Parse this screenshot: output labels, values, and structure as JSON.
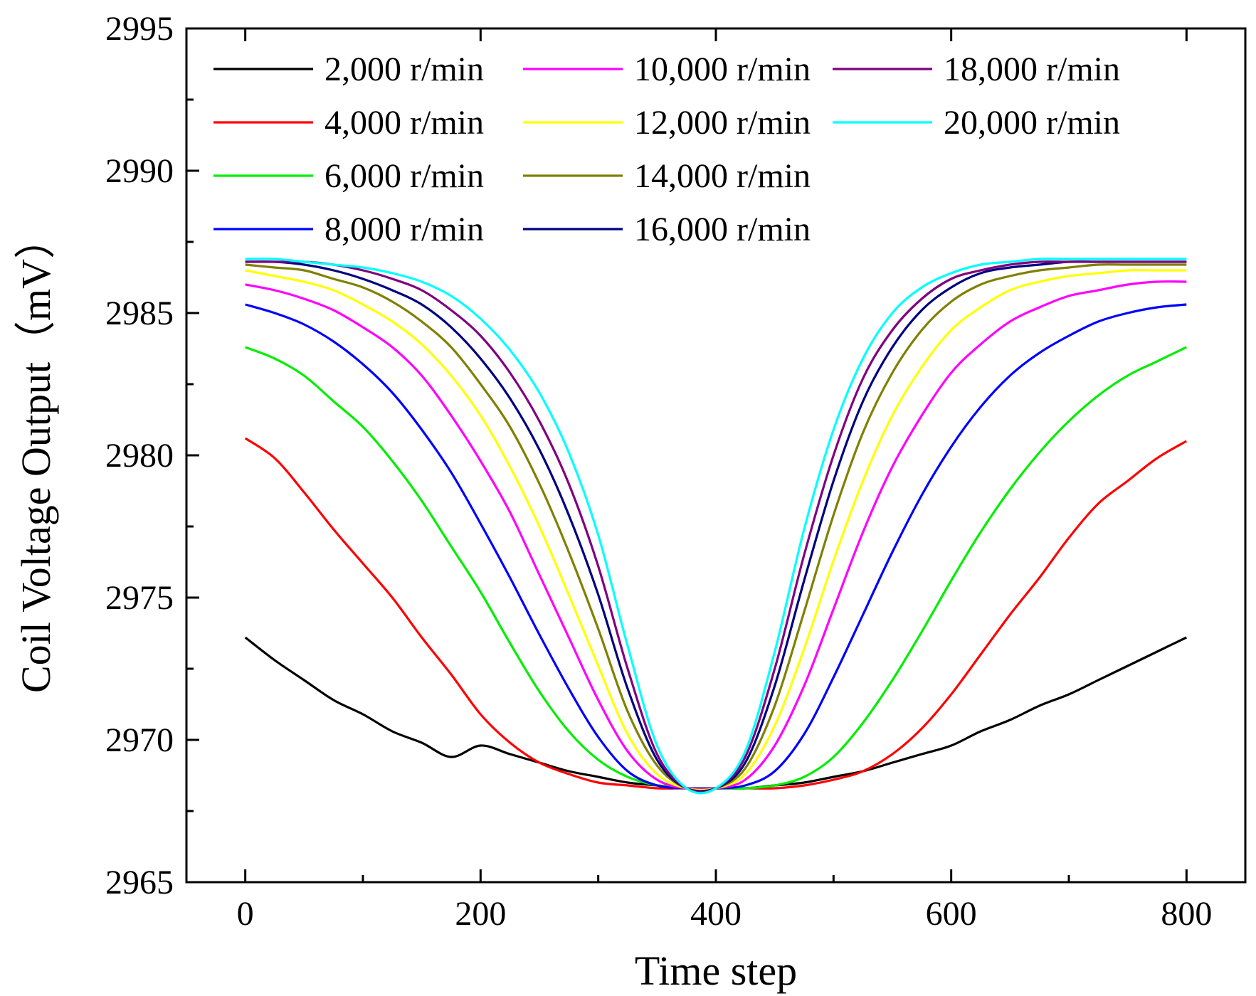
{
  "chart_data": {
    "type": "line",
    "title": "",
    "xlabel": "Time step",
    "ylabel": "Coil Voltage Output（mV）",
    "xlim": [
      -50,
      850
    ],
    "ylim": [
      2965,
      2995
    ],
    "x_ticks": [
      "0",
      "200",
      "400",
      "600",
      "800"
    ],
    "y_ticks": [
      "2965",
      "2970",
      "2975",
      "2980",
      "2985",
      "2990",
      "2995"
    ],
    "grid": false,
    "legend_position": "top",
    "minimum": 2968.3,
    "x": [
      0,
      25,
      50,
      75,
      100,
      125,
      150,
      175,
      200,
      225,
      250,
      275,
      300,
      325,
      350,
      375,
      400,
      425,
      450,
      475,
      500,
      525,
      550,
      575,
      600,
      625,
      650,
      675,
      700,
      725,
      750,
      775,
      800
    ],
    "series": [
      {
        "name": "2,000 r/min",
        "color": "#000000",
        "values": [
          2973.6,
          2972.8,
          2972.1,
          2971.4,
          2970.9,
          2970.3,
          2969.9,
          2969.4,
          2969.8,
          2969.5,
          2969.2,
          2968.9,
          2968.7,
          2968.5,
          2968.4,
          2968.3,
          2968.3,
          2968.3,
          2968.4,
          2968.5,
          2968.7,
          2968.9,
          2969.2,
          2969.5,
          2969.8,
          2970.3,
          2970.7,
          2971.2,
          2971.6,
          2972.1,
          2972.6,
          2973.1,
          2973.6
        ]
      },
      {
        "name": "4,000 r/min",
        "color": "#ff0000",
        "values": [
          2980.6,
          2979.9,
          2978.7,
          2977.4,
          2976.2,
          2975.0,
          2973.6,
          2972.3,
          2970.9,
          2969.9,
          2969.2,
          2968.8,
          2968.5,
          2968.4,
          2968.3,
          2968.3,
          2968.3,
          2968.3,
          2968.3,
          2968.4,
          2968.6,
          2968.9,
          2969.5,
          2970.4,
          2971.6,
          2973.0,
          2974.4,
          2975.7,
          2977.1,
          2978.3,
          2979.1,
          2979.9,
          2980.5
        ]
      },
      {
        "name": "6,000 r/min",
        "color": "#00ee00",
        "values": [
          2983.8,
          2983.4,
          2982.8,
          2981.9,
          2981.0,
          2979.8,
          2978.4,
          2976.8,
          2975.2,
          2973.4,
          2971.7,
          2970.3,
          2969.3,
          2968.7,
          2968.4,
          2968.3,
          2968.3,
          2968.3,
          2968.4,
          2968.7,
          2969.4,
          2970.6,
          2972.1,
          2973.8,
          2975.6,
          2977.3,
          2978.8,
          2980.1,
          2981.2,
          2982.1,
          2982.8,
          2983.3,
          2983.8
        ]
      },
      {
        "name": "8,000 r/min",
        "color": "#0000ff",
        "values": [
          2985.3,
          2985.0,
          2984.6,
          2984.0,
          2983.2,
          2982.2,
          2980.9,
          2979.4,
          2977.6,
          2975.7,
          2973.7,
          2971.8,
          2970.1,
          2968.9,
          2968.4,
          2968.3,
          2968.3,
          2968.4,
          2968.9,
          2970.2,
          2972.2,
          2974.4,
          2976.6,
          2978.6,
          2980.3,
          2981.7,
          2982.8,
          2983.6,
          2984.2,
          2984.7,
          2985.0,
          2985.2,
          2985.3
        ]
      },
      {
        "name": "10,000 r/min",
        "color": "#ff00ff",
        "values": [
          2986.0,
          2985.8,
          2985.5,
          2985.1,
          2984.5,
          2983.8,
          2982.8,
          2981.4,
          2979.8,
          2978.0,
          2975.8,
          2973.6,
          2971.4,
          2969.6,
          2968.6,
          2968.3,
          2968.3,
          2968.6,
          2969.8,
          2971.9,
          2974.6,
          2977.3,
          2979.6,
          2981.4,
          2982.9,
          2983.9,
          2984.7,
          2985.2,
          2985.6,
          2985.8,
          2986.0,
          2986.1,
          2986.1
        ]
      },
      {
        "name": "12,000 r/min",
        "color": "#ffff00",
        "values": [
          2986.5,
          2986.3,
          2986.1,
          2985.8,
          2985.3,
          2984.7,
          2983.9,
          2982.8,
          2981.4,
          2979.6,
          2977.5,
          2975.1,
          2972.6,
          2970.2,
          2968.8,
          2968.3,
          2968.3,
          2968.8,
          2970.5,
          2973.2,
          2976.3,
          2979.1,
          2981.4,
          2983.1,
          2984.4,
          2985.2,
          2985.8,
          2986.1,
          2986.3,
          2986.4,
          2986.5,
          2986.5,
          2986.5
        ]
      },
      {
        "name": "14,000 r/min",
        "color": "#808000",
        "values": [
          2986.7,
          2986.6,
          2986.5,
          2986.2,
          2985.9,
          2985.4,
          2984.7,
          2983.8,
          2982.5,
          2981.0,
          2979.0,
          2976.6,
          2973.9,
          2971.0,
          2969.1,
          2968.3,
          2968.3,
          2969.0,
          2971.2,
          2974.5,
          2977.9,
          2980.8,
          2982.9,
          2984.4,
          2985.4,
          2986.0,
          2986.3,
          2986.5,
          2986.6,
          2986.7,
          2986.7,
          2986.7,
          2986.7
        ]
      },
      {
        "name": "16,000 r/min",
        "color": "#000080",
        "values": [
          2986.8,
          2986.8,
          2986.7,
          2986.5,
          2986.2,
          2985.8,
          2985.3,
          2984.5,
          2983.4,
          2982.0,
          2980.2,
          2977.9,
          2975.1,
          2971.8,
          2969.3,
          2968.3,
          2968.3,
          2969.2,
          2971.9,
          2975.6,
          2979.1,
          2981.9,
          2983.8,
          2985.1,
          2985.9,
          2986.4,
          2986.6,
          2986.7,
          2986.8,
          2986.8,
          2986.8,
          2986.8,
          2986.8
        ]
      },
      {
        "name": "18,000 r/min",
        "color": "#800080",
        "values": [
          2986.8,
          2986.8,
          2986.8,
          2986.7,
          2986.5,
          2986.2,
          2985.8,
          2985.1,
          2984.2,
          2982.9,
          2981.2,
          2979.0,
          2976.1,
          2972.5,
          2969.5,
          2968.3,
          2968.3,
          2969.4,
          2972.5,
          2976.5,
          2980.0,
          2982.7,
          2984.4,
          2985.5,
          2986.2,
          2986.5,
          2986.7,
          2986.8,
          2986.8,
          2986.8,
          2986.8,
          2986.8,
          2986.8
        ]
      },
      {
        "name": "20,000 r/min",
        "color": "#00ffff",
        "values": [
          2986.9,
          2986.9,
          2986.8,
          2986.7,
          2986.6,
          2986.4,
          2986.1,
          2985.6,
          2984.8,
          2983.7,
          2982.2,
          2980.1,
          2977.2,
          2973.3,
          2969.8,
          2968.3,
          2968.3,
          2969.6,
          2973.1,
          2977.4,
          2980.9,
          2983.4,
          2985.0,
          2985.9,
          2986.4,
          2986.7,
          2986.8,
          2986.9,
          2986.9,
          2986.9,
          2986.9,
          2986.9,
          2986.9
        ]
      }
    ]
  }
}
